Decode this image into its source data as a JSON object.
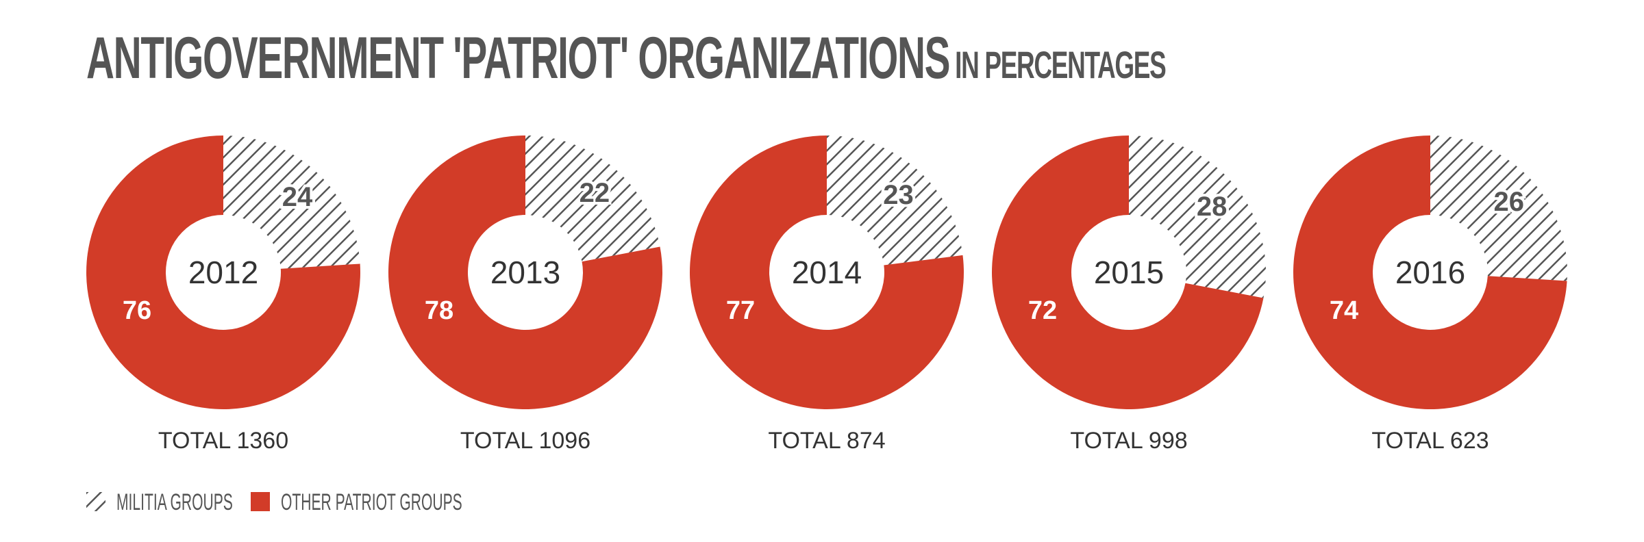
{
  "title": {
    "main": "ANTIGOVERNMENT 'PATRIOT' ORGANIZATIONS",
    "sub": "IN PERCENTAGES"
  },
  "colors": {
    "militia": "#555555",
    "other": "#d23c28",
    "text": "#333333",
    "background": "#ffffff"
  },
  "chart_data": {
    "type": "pie",
    "style": "donut",
    "title": "ANTIGOVERNMENT 'PATRIOT' ORGANIZATIONS IN PERCENTAGES",
    "legend_position": "bottom-left",
    "series_names": [
      "MILITIA GROUPS",
      "OTHER PATRIOT GROUPS"
    ],
    "charts": [
      {
        "year": "2012",
        "total_label": "TOTAL 1360",
        "militia": 24,
        "other": 76
      },
      {
        "year": "2013",
        "total_label": "TOTAL 1096",
        "militia": 22,
        "other": 78
      },
      {
        "year": "2014",
        "total_label": "TOTAL 874",
        "militia": 23,
        "other": 77
      },
      {
        "year": "2015",
        "total_label": "TOTAL 998",
        "militia": 28,
        "other": 72
      },
      {
        "year": "2016",
        "total_label": "TOTAL 623",
        "militia": 26,
        "other": 74
      }
    ]
  },
  "legend": {
    "items": [
      {
        "label": "MILITIA GROUPS",
        "pattern": "hatched"
      },
      {
        "label": "OTHER PATRIOT GROUPS",
        "pattern": "solid"
      }
    ]
  }
}
